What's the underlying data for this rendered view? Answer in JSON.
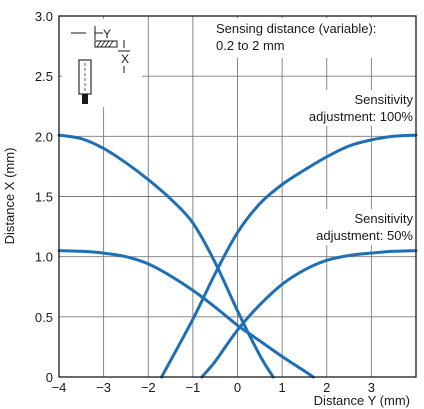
{
  "colors": {
    "curve": "#1f6fb5",
    "grid": "#7a7a7a",
    "frame": "#1a1a1a"
  },
  "chart_data": {
    "type": "line",
    "xlabel": "Distance Y (mm)",
    "ylabel": "Distance X (mm)",
    "xlim": [
      -4,
      4
    ],
    "ylim": [
      0,
      3.0
    ],
    "x_ticks": [
      "−4",
      "−3",
      "−2",
      "−1",
      "0",
      "1",
      "2",
      "3"
    ],
    "y_ticks": [
      "0",
      "0.5",
      "1.0",
      "1.5",
      "2.0",
      "2.5",
      "3.0"
    ],
    "x_tick_values": [
      -4,
      -3,
      -2,
      -1,
      0,
      1,
      2,
      3
    ],
    "y_tick_values": [
      0,
      0.5,
      1.0,
      1.5,
      2.0,
      2.5,
      3.0
    ],
    "grid": true,
    "annotations": {
      "sensing_line1": "Sensing distance (variable):",
      "sensing_line2": "0.2 to 2 mm",
      "s100_line1": "Sensitivity",
      "s100_line2": "adjustment: 100%",
      "s50_line1": "Sensitivity",
      "s50_line2": "adjustment: 50%",
      "icon_label_y": "Y",
      "icon_label_x": "X"
    },
    "series": [
      {
        "x": [
          -4.0,
          -3.5,
          -3.0,
          -2.5,
          -2.0,
          -1.5,
          -1.0,
          -0.5,
          0.0,
          0.5,
          0.8
        ],
        "y": [
          2.01,
          1.98,
          1.9,
          1.78,
          1.64,
          1.48,
          1.28,
          0.95,
          0.55,
          0.18,
          0.0
        ]
      },
      {
        "x": [
          -1.7,
          -1.0,
          -0.5,
          0.0,
          0.5,
          1.0,
          1.5,
          2.0,
          2.5,
          3.0,
          3.5,
          4.0
        ],
        "y": [
          0.0,
          0.48,
          0.86,
          1.2,
          1.44,
          1.6,
          1.72,
          1.83,
          1.92,
          1.97,
          2.0,
          2.01
        ]
      },
      {
        "x": [
          -4.0,
          -3.5,
          -3.0,
          -2.5,
          -2.0,
          -1.5,
          -1.0,
          -0.5,
          0.0,
          0.5,
          1.0,
          1.5,
          1.7
        ],
        "y": [
          1.05,
          1.045,
          1.03,
          1.0,
          0.94,
          0.84,
          0.72,
          0.58,
          0.43,
          0.3,
          0.17,
          0.05,
          0.0
        ]
      },
      {
        "x": [
          -0.8,
          -0.5,
          0.0,
          0.5,
          1.0,
          1.5,
          2.0,
          2.5,
          3.0,
          3.5,
          4.0
        ],
        "y": [
          0.0,
          0.13,
          0.39,
          0.6,
          0.77,
          0.89,
          0.97,
          1.01,
          1.03,
          1.045,
          1.05
        ]
      }
    ]
  }
}
